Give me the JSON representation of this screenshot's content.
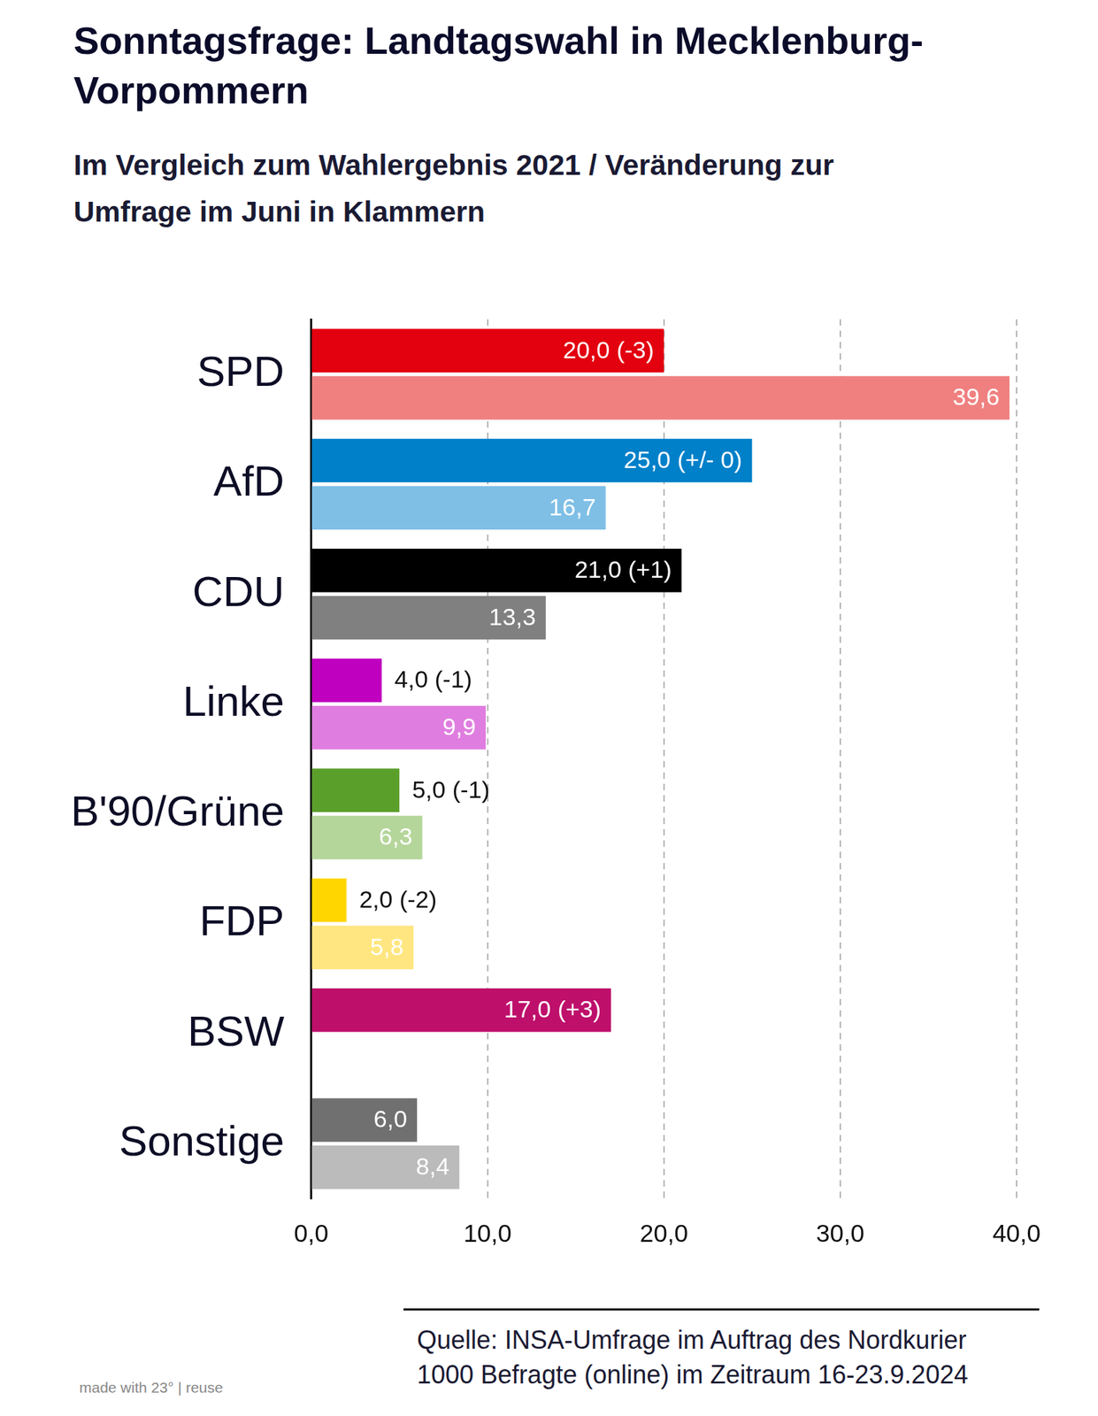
{
  "chart_data": {
    "type": "bar",
    "title": "Sonntagsfrage: Landtagswahl in Mecklenburg-Vorpommern",
    "subtitle": "Im Vergleich zum Wahlergebnis 2021 / Veränderung zur Umfrage im Juni in Klammern",
    "orientation": "horizontal",
    "categories": [
      "SPD",
      "AfD",
      "CDU",
      "Linke",
      "B'90/Grüne",
      "FDP",
      "BSW",
      "Sonstige"
    ],
    "series": [
      {
        "values": [
          20.0,
          25.0,
          21.0,
          4.0,
          5.0,
          2.0,
          17.0,
          6.0
        ],
        "value_labels": [
          "20,0 (-3)",
          "25,0 (+/- 0)",
          "21,0 (+1)",
          "4,0 (-1)",
          "5,0 (-1)",
          "2,0 (-2)",
          "17,0 (+3)",
          "6,0"
        ],
        "colors": [
          "#e3000f",
          "#0080c9",
          "#000000",
          "#bf00bf",
          "#5b9f2b",
          "#ffd600",
          "#be0f6b",
          "#707070"
        ]
      },
      {
        "values": [
          39.6,
          16.7,
          13.3,
          9.9,
          6.3,
          5.8,
          null,
          8.4
        ],
        "value_labels": [
          "39,6",
          "16,7",
          "13,3",
          "9,9",
          "6,3",
          "5,8",
          null,
          "8,4"
        ],
        "colors": [
          "#f08080",
          "#7fbfe6",
          "#808080",
          "#e07de0",
          "#b5d69a",
          "#ffe680",
          "#e88ab8",
          "#bbbbbb"
        ]
      }
    ],
    "xlim": [
      0,
      40
    ],
    "xticks": [
      {
        "value": 0,
        "label": "0,0"
      },
      {
        "value": 10,
        "label": "10,0"
      },
      {
        "value": 20,
        "label": "20,0"
      },
      {
        "value": 30,
        "label": "30,0"
      },
      {
        "value": 40,
        "label": "40,0"
      }
    ],
    "grid": true,
    "data_labels": true,
    "source": [
      "Quelle: INSA-Umfrage im Auftrag des Nordkurier",
      "1000 Befragte (online) im Zeitraum 16-23.9.2024"
    ],
    "credit": "made with 23° | reuse"
  }
}
